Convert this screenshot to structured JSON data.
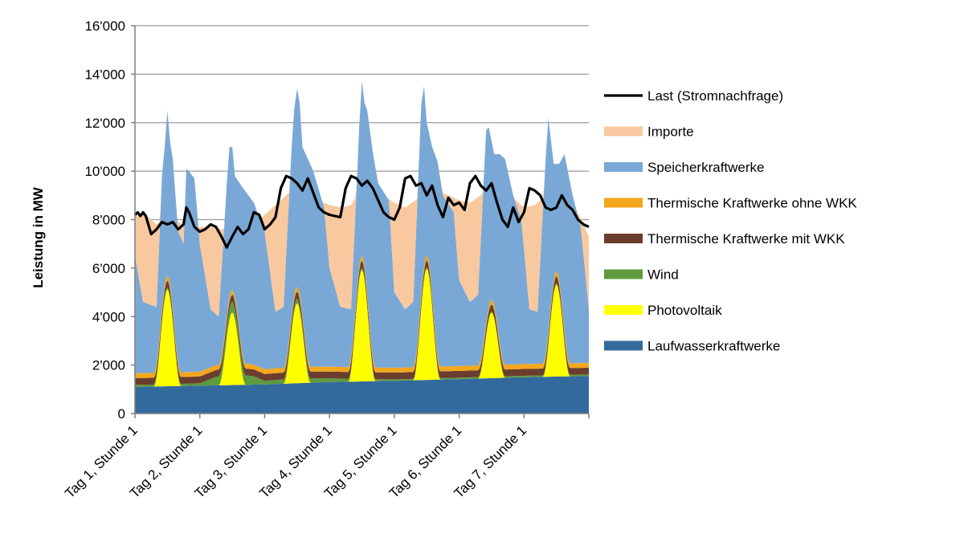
{
  "chart_data": {
    "type": "area",
    "stacked": true,
    "ylabel": "Leistung in MW",
    "xlabel": "",
    "ylim": [
      0,
      16000
    ],
    "yticks": [
      0,
      2000,
      4000,
      6000,
      8000,
      10000,
      12000,
      14000,
      16000
    ],
    "ytick_labels": [
      "0",
      "2'000",
      "4'000",
      "6'000",
      "8'000",
      "10'000",
      "12'000",
      "14'000",
      "16'000"
    ],
    "x_unit": "hour",
    "x_range": [
      0,
      168
    ],
    "categories": [
      "Tag 1, Stunde 1",
      "Tag 2, Stunde 1",
      "Tag 3, Stunde 1",
      "Tag 4, Stunde 1",
      "Tag 5, Stunde 1",
      "Tag 6, Stunde 1",
      "Tag 7, Stunde 1"
    ],
    "category_hours": [
      0,
      24,
      48,
      72,
      96,
      120,
      144
    ],
    "grid": "horizontal",
    "legend_position": "right",
    "series": [
      {
        "name": "Laufwasserkraftwerke",
        "color": "#336a9d",
        "points": [
          [
            0,
            1100
          ],
          [
            24,
            1150
          ],
          [
            48,
            1200
          ],
          [
            72,
            1300
          ],
          [
            96,
            1350
          ],
          [
            120,
            1420
          ],
          [
            144,
            1500
          ],
          [
            168,
            1550
          ]
        ]
      },
      {
        "name": "Photovoltaik",
        "color": "#ffff00",
        "peaks": [
          [
            12,
            4000
          ],
          [
            36,
            3000
          ],
          [
            60,
            3300
          ],
          [
            84,
            4600
          ],
          [
            108,
            4600
          ],
          [
            132,
            2700
          ],
          [
            156,
            3800
          ]
        ]
      },
      {
        "name": "Wind",
        "color": "#5e9a3e",
        "points": [
          [
            0,
            80
          ],
          [
            12,
            80
          ],
          [
            24,
            100
          ],
          [
            30,
            350
          ],
          [
            36,
            450
          ],
          [
            44,
            350
          ],
          [
            48,
            150
          ],
          [
            60,
            200
          ],
          [
            72,
            150
          ],
          [
            84,
            100
          ],
          [
            96,
            60
          ],
          [
            120,
            60
          ],
          [
            144,
            60
          ],
          [
            168,
            60
          ]
        ]
      },
      {
        "name": "Thermische Kraftwerke mit WKK",
        "color": "#6b3d2e",
        "points": [
          [
            0,
            280
          ],
          [
            24,
            280
          ],
          [
            48,
            280
          ],
          [
            72,
            280
          ],
          [
            96,
            280
          ],
          [
            120,
            280
          ],
          [
            144,
            280
          ],
          [
            168,
            280
          ]
        ]
      },
      {
        "name": "Thermische Kraftwerke ohne WKK",
        "color": "#f2a71d",
        "points": [
          [
            0,
            200
          ],
          [
            24,
            200
          ],
          [
            48,
            200
          ],
          [
            72,
            200
          ],
          [
            96,
            200
          ],
          [
            120,
            200
          ],
          [
            144,
            200
          ],
          [
            168,
            200
          ]
        ]
      },
      {
        "name": "Speicherkraftwerke",
        "color": "#7aa8d6",
        "total_points": [
          [
            0,
            6500
          ],
          [
            3,
            4600
          ],
          [
            8,
            4400
          ],
          [
            10,
            9800
          ],
          [
            11,
            11000
          ],
          [
            12,
            12500
          ],
          [
            13,
            11200
          ],
          [
            14,
            10500
          ],
          [
            16,
            7500
          ],
          [
            18,
            7000
          ],
          [
            19,
            10100
          ],
          [
            20,
            10000
          ],
          [
            22,
            9700
          ],
          [
            24,
            7000
          ],
          [
            28,
            4300
          ],
          [
            31,
            4000
          ],
          [
            34,
            9500
          ],
          [
            35,
            11000
          ],
          [
            36,
            11000
          ],
          [
            37,
            9800
          ],
          [
            40,
            9300
          ],
          [
            42,
            9000
          ],
          [
            44,
            8700
          ],
          [
            48,
            7500
          ],
          [
            52,
            4200
          ],
          [
            55,
            4400
          ],
          [
            58,
            11000
          ],
          [
            59,
            12600
          ],
          [
            60,
            13400
          ],
          [
            61,
            12800
          ],
          [
            62,
            11000
          ],
          [
            66,
            10000
          ],
          [
            70,
            8500
          ],
          [
            72,
            6000
          ],
          [
            76,
            4400
          ],
          [
            80,
            4300
          ],
          [
            83,
            11800
          ],
          [
            84,
            13700
          ],
          [
            85,
            12800
          ],
          [
            86,
            12500
          ],
          [
            88,
            10800
          ],
          [
            90,
            9500
          ],
          [
            94,
            8800
          ],
          [
            96,
            5000
          ],
          [
            100,
            4300
          ],
          [
            103,
            4600
          ],
          [
            106,
            12800
          ],
          [
            107,
            13500
          ],
          [
            108,
            12000
          ],
          [
            110,
            11000
          ],
          [
            112,
            10400
          ],
          [
            114,
            9000
          ],
          [
            118,
            8300
          ],
          [
            120,
            5500
          ],
          [
            124,
            4600
          ],
          [
            127,
            4900
          ],
          [
            130,
            11700
          ],
          [
            131,
            11800
          ],
          [
            133,
            10700
          ],
          [
            135,
            10700
          ],
          [
            137,
            10500
          ],
          [
            140,
            9000
          ],
          [
            143,
            8000
          ],
          [
            146,
            4300
          ],
          [
            149,
            4200
          ],
          [
            152,
            10500
          ],
          [
            153,
            12200
          ],
          [
            155,
            10300
          ],
          [
            157,
            10300
          ],
          [
            159,
            10700
          ],
          [
            162,
            9000
          ],
          [
            165,
            7700
          ],
          [
            168,
            4300
          ]
        ]
      },
      {
        "name": "Importe",
        "color": "#f8c99f",
        "total_points": [
          [
            0,
            8300
          ],
          [
            4,
            8200
          ],
          [
            8,
            7800
          ],
          [
            10,
            8000
          ],
          [
            14,
            7900
          ],
          [
            16,
            7900
          ],
          [
            18,
            7800
          ],
          [
            20,
            7800
          ],
          [
            22,
            7600
          ],
          [
            24,
            7700
          ],
          [
            28,
            7700
          ],
          [
            32,
            7600
          ],
          [
            36,
            7700
          ],
          [
            40,
            7700
          ],
          [
            44,
            7800
          ],
          [
            48,
            8200
          ],
          [
            52,
            8600
          ],
          [
            56,
            9000
          ],
          [
            60,
            9400
          ],
          [
            64,
            9100
          ],
          [
            68,
            8800
          ],
          [
            72,
            8600
          ],
          [
            76,
            8500
          ],
          [
            80,
            8600
          ],
          [
            84,
            9300
          ],
          [
            88,
            9200
          ],
          [
            92,
            9000
          ],
          [
            96,
            8700
          ],
          [
            100,
            8500
          ],
          [
            104,
            8800
          ],
          [
            108,
            9400
          ],
          [
            112,
            9200
          ],
          [
            116,
            9000
          ],
          [
            120,
            8800
          ],
          [
            124,
            8700
          ],
          [
            128,
            9000
          ],
          [
            132,
            9500
          ],
          [
            136,
            9200
          ],
          [
            140,
            8900
          ],
          [
            144,
            8500
          ],
          [
            148,
            8600
          ],
          [
            152,
            9000
          ],
          [
            156,
            9200
          ],
          [
            160,
            8800
          ],
          [
            164,
            8300
          ],
          [
            168,
            7300
          ]
        ]
      },
      {
        "name": "Last (Stromnachfrage)",
        "color": "#000000",
        "type": "line",
        "points": [
          [
            0,
            8200
          ],
          [
            1,
            8300
          ],
          [
            2,
            8150
          ],
          [
            3,
            8300
          ],
          [
            4,
            8150
          ],
          [
            6,
            7400
          ],
          [
            8,
            7600
          ],
          [
            10,
            7900
          ],
          [
            12,
            7800
          ],
          [
            14,
            7900
          ],
          [
            16,
            7600
          ],
          [
            18,
            7800
          ],
          [
            19,
            8500
          ],
          [
            20,
            8300
          ],
          [
            22,
            7700
          ],
          [
            24,
            7500
          ],
          [
            26,
            7600
          ],
          [
            28,
            7800
          ],
          [
            30,
            7700
          ],
          [
            32,
            7300
          ],
          [
            34,
            6850
          ],
          [
            36,
            7300
          ],
          [
            38,
            7700
          ],
          [
            40,
            7400
          ],
          [
            42,
            7600
          ],
          [
            44,
            8300
          ],
          [
            46,
            8200
          ],
          [
            48,
            7600
          ],
          [
            50,
            7800
          ],
          [
            52,
            8100
          ],
          [
            54,
            9300
          ],
          [
            56,
            9800
          ],
          [
            58,
            9700
          ],
          [
            60,
            9500
          ],
          [
            62,
            9200
          ],
          [
            64,
            9700
          ],
          [
            66,
            9100
          ],
          [
            68,
            8500
          ],
          [
            70,
            8300
          ],
          [
            72,
            8200
          ],
          [
            76,
            8100
          ],
          [
            78,
            9300
          ],
          [
            80,
            9800
          ],
          [
            82,
            9700
          ],
          [
            84,
            9400
          ],
          [
            86,
            9600
          ],
          [
            88,
            9300
          ],
          [
            90,
            8800
          ],
          [
            92,
            8300
          ],
          [
            94,
            8100
          ],
          [
            96,
            8000
          ],
          [
            98,
            8500
          ],
          [
            100,
            9700
          ],
          [
            102,
            9800
          ],
          [
            104,
            9400
          ],
          [
            106,
            9500
          ],
          [
            108,
            9000
          ],
          [
            110,
            9400
          ],
          [
            112,
            8600
          ],
          [
            114,
            8100
          ],
          [
            116,
            8900
          ],
          [
            118,
            8600
          ],
          [
            120,
            8700
          ],
          [
            122,
            8400
          ],
          [
            124,
            9500
          ],
          [
            126,
            9800
          ],
          [
            128,
            9400
          ],
          [
            130,
            9200
          ],
          [
            132,
            9500
          ],
          [
            134,
            8700
          ],
          [
            136,
            8000
          ],
          [
            138,
            7700
          ],
          [
            140,
            8500
          ],
          [
            142,
            7900
          ],
          [
            144,
            8300
          ],
          [
            146,
            9300
          ],
          [
            148,
            9200
          ],
          [
            150,
            9000
          ],
          [
            152,
            8500
          ],
          [
            154,
            8400
          ],
          [
            156,
            8500
          ],
          [
            158,
            9000
          ],
          [
            160,
            8600
          ],
          [
            162,
            8400
          ],
          [
            164,
            8000
          ],
          [
            166,
            7800
          ],
          [
            168,
            7700
          ]
        ]
      }
    ]
  }
}
